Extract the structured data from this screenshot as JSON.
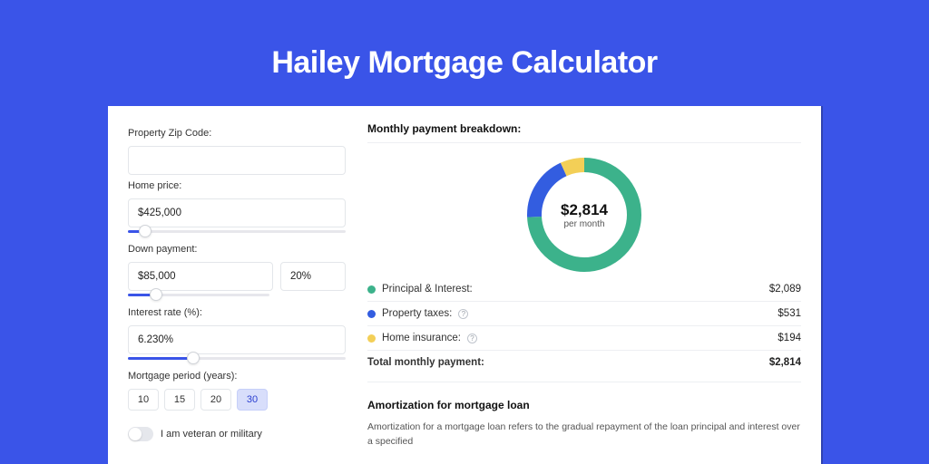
{
  "page": {
    "title": "Hailey Mortgage Calculator",
    "background_color": "#3a54e8",
    "card_background": "#ffffff"
  },
  "form": {
    "zip": {
      "label": "Property Zip Code:",
      "value": ""
    },
    "home_price": {
      "label": "Home price:",
      "value": "$425,000",
      "slider_pct": 8
    },
    "down_payment": {
      "label": "Down payment:",
      "amount": "$85,000",
      "percent": "20%",
      "slider_pct": 20
    },
    "interest_rate": {
      "label": "Interest rate (%):",
      "value": "6.230%",
      "slider_pct": 30
    },
    "period": {
      "label": "Mortgage period (years):",
      "options": [
        "10",
        "15",
        "20",
        "30"
      ],
      "selected": "30"
    },
    "veteran": {
      "label": "I am veteran or military",
      "checked": false
    }
  },
  "breakdown": {
    "title": "Monthly payment breakdown:",
    "center_amount": "$2,814",
    "center_sub": "per month",
    "chart": {
      "type": "donut",
      "ring_thickness": 16,
      "radius": 63,
      "background": "#ffffff",
      "slices": [
        {
          "label": "Principal & Interest",
          "value": 2089,
          "color": "#3cb28b"
        },
        {
          "label": "Property taxes",
          "value": 531,
          "color": "#335de0"
        },
        {
          "label": "Home insurance",
          "value": 194,
          "color": "#f3cf57"
        }
      ]
    },
    "rows": [
      {
        "label": "Principal & Interest:",
        "value": "$2,089",
        "color": "#3cb28b",
        "info": false
      },
      {
        "label": "Property taxes:",
        "value": "$531",
        "color": "#335de0",
        "info": true
      },
      {
        "label": "Home insurance:",
        "value": "$194",
        "color": "#f3cf57",
        "info": true
      }
    ],
    "total": {
      "label": "Total monthly payment:",
      "value": "$2,814"
    }
  },
  "amortization": {
    "title": "Amortization for mortgage loan",
    "text": "Amortization for a mortgage loan refers to the gradual repayment of the loan principal and interest over a specified"
  }
}
